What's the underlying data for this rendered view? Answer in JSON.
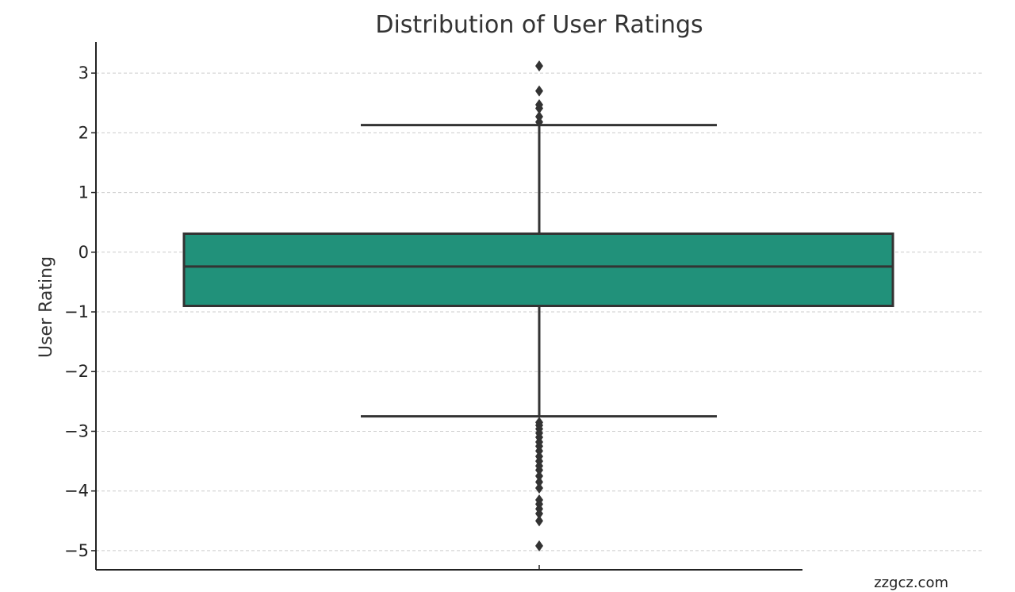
{
  "chart_data": {
    "type": "box",
    "title": "Distribution of User Ratings",
    "xlabel": "",
    "ylabel": "User Rating",
    "ylim": [
      -5.32,
      3.52
    ],
    "yticks": [
      3,
      2,
      1,
      0,
      -1,
      -2,
      -3,
      -4,
      -5
    ],
    "ytick_labels": [
      "3",
      "2",
      "1",
      "0",
      "−1",
      "−2",
      "−3",
      "−4",
      "−5"
    ],
    "grid": true,
    "box": {
      "q1": -0.9,
      "median": -0.24,
      "q3": 0.31,
      "whisker_low": -2.75,
      "whisker_high": 2.13,
      "color": "#21917a"
    },
    "outliers": [
      3.12,
      2.7,
      2.47,
      2.41,
      2.27,
      2.18,
      -2.85,
      -2.9,
      -2.96,
      -3.03,
      -3.1,
      -3.18,
      -3.25,
      -3.33,
      -3.42,
      -3.5,
      -3.58,
      -3.65,
      -3.75,
      -3.85,
      -3.95,
      -4.15,
      -4.22,
      -4.3,
      -4.38,
      -4.5,
      -4.92
    ]
  },
  "watermark": "zzgcz.com"
}
